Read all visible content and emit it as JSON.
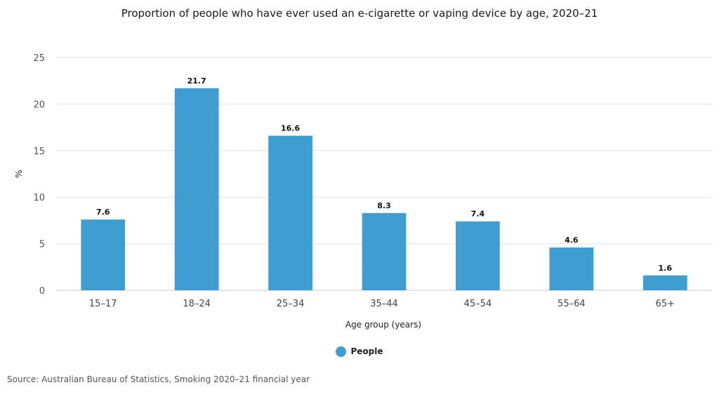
{
  "title": "Proportion of people who have ever used an e-cigarette or vaping device by age, 2020–21",
  "source": "Source: Australian Bureau of Statistics, Smoking 2020–21 financial year",
  "legend": {
    "label": "People"
  },
  "colors": {
    "bar": "#3f9dd2",
    "grid": "#e2e2e2",
    "axis": "#cccccc"
  },
  "chart_data": {
    "type": "bar",
    "title": "Proportion of people who have ever used an e-cigarette or vaping device by age, 2020–21",
    "xlabel": "Age group (years)",
    "ylabel": "%",
    "categories": [
      "15–17",
      "18–24",
      "25–34",
      "35–44",
      "45–54",
      "55–64",
      "65+"
    ],
    "series": [
      {
        "name": "People",
        "values": [
          7.6,
          21.7,
          16.6,
          8.3,
          7.4,
          4.6,
          1.6
        ]
      }
    ],
    "ylim": [
      0,
      25
    ],
    "yticks": [
      0,
      5,
      10,
      15,
      20,
      25
    ],
    "grid": true,
    "legend_position": "bottom-center",
    "data_labels": true
  }
}
